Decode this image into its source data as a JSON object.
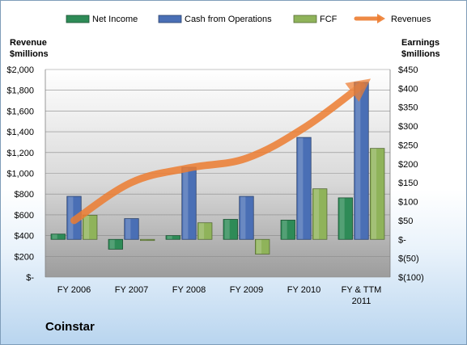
{
  "company": "Coinstar",
  "chart_data": {
    "type": "bar",
    "categories": [
      "FY 2006",
      "FY 2007",
      "FY 2008",
      "FY 2009",
      "FY 2010",
      "FY & TTM 2011"
    ],
    "category_lines": [
      [
        "FY 2006"
      ],
      [
        "FY 2007"
      ],
      [
        "FY 2008"
      ],
      [
        "FY 2009"
      ],
      [
        "FY 2010"
      ],
      [
        "FY & TTM",
        "2011"
      ]
    ],
    "left_axis": {
      "title_lines": [
        "Revenue",
        "$millions"
      ],
      "min": 0,
      "max": 2000,
      "step": 200,
      "tick_labels": [
        "$-",
        "$200",
        "$400",
        "$600",
        "$800",
        "$1,000",
        "$1,200",
        "$1,400",
        "$1,600",
        "$1,800",
        "$2,000"
      ]
    },
    "right_axis": {
      "title_lines": [
        "Earnings",
        "$millions"
      ],
      "min": -100,
      "max": 450,
      "step": 50,
      "tick_labels": [
        "$(100)",
        "$(50)",
        "$-",
        "$50",
        "$100",
        "$150",
        "$200",
        "$250",
        "$300",
        "$350",
        "$400",
        "$450"
      ]
    },
    "legend_position": "top",
    "series": [
      {
        "name": "Net Income",
        "axis": "right",
        "kind": "bar",
        "color": "#2e8b57",
        "values": [
          14,
          -26,
          10,
          53,
          51,
          110
        ]
      },
      {
        "name": "Cash from Operations",
        "axis": "right",
        "kind": "bar",
        "color": "#4a6fb5",
        "values": [
          114,
          55,
          191,
          114,
          270,
          416
        ]
      },
      {
        "name": "FCF",
        "axis": "right",
        "kind": "bar",
        "color": "#8fb35a",
        "values": [
          64,
          -3,
          44,
          -39,
          134,
          241
        ]
      },
      {
        "name": "Revenues",
        "axis": "left",
        "kind": "line",
        "color": "#ed7d31",
        "values": [
          546,
          912,
          1052,
          1145,
          1437,
          1845
        ]
      }
    ]
  }
}
